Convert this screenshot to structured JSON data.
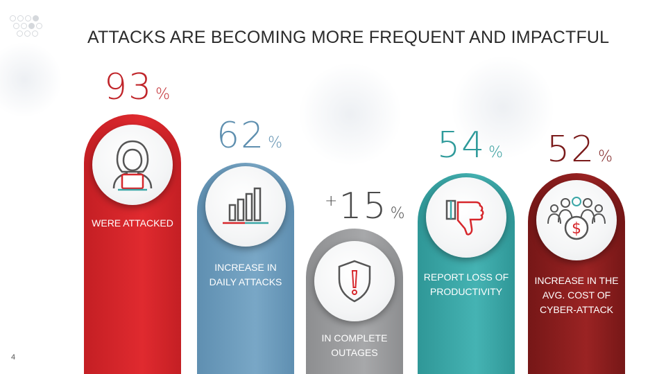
{
  "slide": {
    "title": "ATTACKS ARE BECOMING MORE FREQUENT AND IMPACTFUL",
    "page_number": "4"
  },
  "stats": [
    {
      "id": "attacked",
      "value": "93",
      "prefix": "",
      "unit": "%",
      "label_lines": [
        "WERE ATTACKED"
      ],
      "color": "#d6262b",
      "value_color": "#c0252a",
      "icon": "hacker-laptop-icon"
    },
    {
      "id": "daily",
      "value": "62",
      "prefix": "",
      "unit": "%",
      "label_lines": [
        "INCREASE IN",
        "DAILY ATTACKS"
      ],
      "color": "#6a9bbd",
      "value_color": "#5e8faf",
      "icon": "bar-chart-icon"
    },
    {
      "id": "outages",
      "value": "15",
      "prefix": "+",
      "unit": "%",
      "label_lines": [
        "IN COMPLETE",
        "OUTAGES"
      ],
      "color": "#9a9b9d",
      "value_color": "#4a4a4a",
      "icon": "shield-alert-icon"
    },
    {
      "id": "productivity",
      "value": "54",
      "prefix": "",
      "unit": "%",
      "label_lines": [
        "REPORT LOSS OF",
        "PRODUCTIVITY"
      ],
      "color": "#3aa6a6",
      "value_color": "#2e9a9a",
      "icon": "thumbs-down-icon"
    },
    {
      "id": "cost",
      "value": "52",
      "prefix": "",
      "unit": "%",
      "label_lines": [
        "INCREASE IN THE",
        "AVG. COST OF",
        "CYBER-ATTACK"
      ],
      "color": "#8a1d1d",
      "value_color": "#7a1a1a",
      "icon": "people-dollar-icon"
    }
  ]
}
